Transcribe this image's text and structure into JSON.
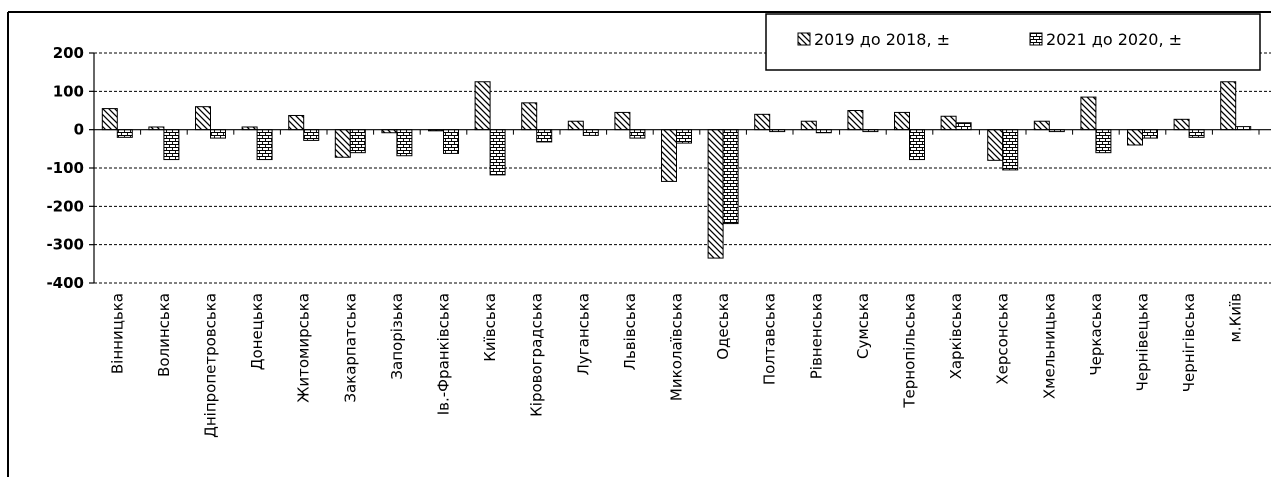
{
  "chart_data": {
    "type": "bar",
    "title": "",
    "xlabel": "",
    "ylabel": "",
    "ylim": [
      -400,
      200
    ],
    "yticks": [
      200,
      100,
      0,
      -100,
      -200,
      -300,
      -400
    ],
    "grid": "horizontal-dashed",
    "legend_position": "top-right",
    "categories": [
      "Вінницька",
      "Волинська",
      "Дніпропетровська",
      "Донецька",
      "Житомирська",
      "Закарпатська",
      "Запорізька",
      "Ів.-Франківська",
      "Київська",
      "Кіровоградська",
      "Луганська",
      "Львівська",
      "Миколаївська",
      "Одеська",
      "Полтавська",
      "Рівненська",
      "Сумська",
      "Тернопільська",
      "Харківська",
      "Херсонська",
      "Хмельницька",
      "Черкаська",
      "Чернівецька",
      "Чернігівська",
      "м.Київ"
    ],
    "series": [
      {
        "name": "2019 до 2018, ±",
        "pattern": "diagonal",
        "values": [
          55,
          7,
          60,
          7,
          37,
          -72,
          -8,
          -3,
          125,
          70,
          22,
          45,
          -135,
          -335,
          40,
          22,
          50,
          45,
          35,
          -80,
          22,
          85,
          -40,
          27,
          125
        ]
      },
      {
        "name": "2021 до 2020, ±",
        "pattern": "brick",
        "values": [
          -20,
          -78,
          -22,
          -78,
          -28,
          -60,
          -68,
          -62,
          -118,
          -32,
          -15,
          -22,
          -35,
          -245,
          -5,
          -8,
          -5,
          -78,
          18,
          -105,
          -5,
          -60,
          -22,
          -20,
          8
        ]
      }
    ]
  }
}
